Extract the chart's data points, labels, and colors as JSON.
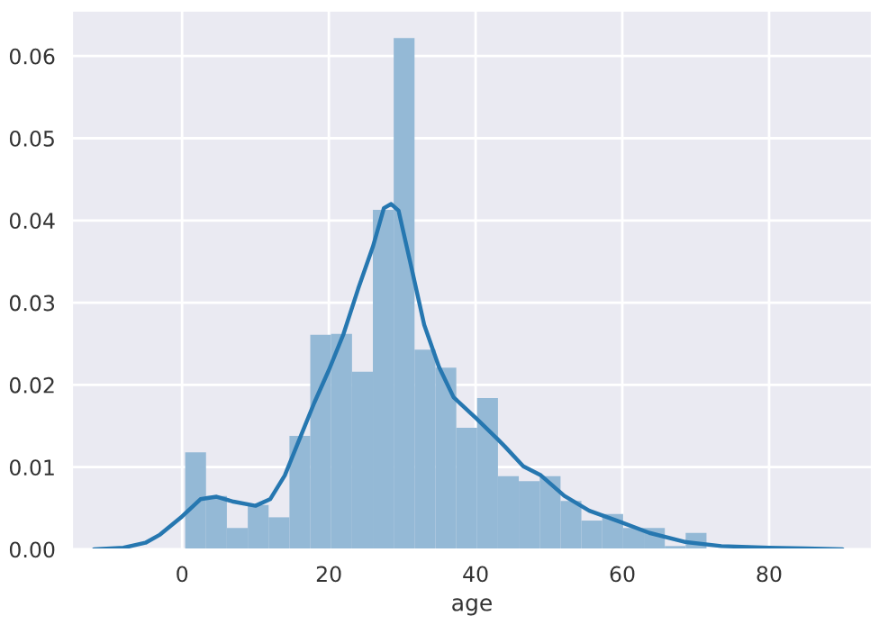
{
  "chart_data": {
    "type": "histogram",
    "xlabel": "age",
    "bins": [
      0.42,
      3.26,
      6.1,
      8.95,
      11.79,
      14.63,
      17.47,
      20.31,
      23.16,
      26.0,
      28.84,
      31.68,
      34.53,
      37.37,
      40.21,
      43.05,
      45.89,
      48.74,
      51.58,
      54.42,
      57.26,
      60.11,
      62.95,
      65.79,
      68.63,
      71.47,
      74.32,
      77.16,
      80.0
    ],
    "values": [
      0.0118,
      0.0065,
      0.0026,
      0.0054,
      0.0039,
      0.0138,
      0.0261,
      0.0262,
      0.0216,
      0.0413,
      0.0622,
      0.0243,
      0.0221,
      0.0148,
      0.0184,
      0.0089,
      0.0083,
      0.0089,
      0.0059,
      0.0035,
      0.0043,
      0.0026,
      0.0026,
      0.0004,
      0.002,
      0,
      0,
      null
    ],
    "color": "#94b9d6",
    "series": [
      {
        "type": "line",
        "color": "#2677b0",
        "x": [
          -12,
          -8,
          -5,
          -3,
          0,
          2.5,
          4.7,
          7,
          10,
          12,
          14,
          16,
          18,
          20,
          22,
          24,
          26,
          27.5,
          28.5,
          29.5,
          31,
          33,
          35,
          37,
          40,
          43,
          44,
          46.5,
          48.9,
          52.1,
          55.5,
          59.5,
          63.7,
          68.6,
          73.5,
          80,
          85,
          90
        ],
        "values": [
          0,
          0.0002,
          0.0008,
          0.0018,
          0.004,
          0.0061,
          0.0064,
          0.0058,
          0.0053,
          0.0061,
          0.009,
          0.0134,
          0.0178,
          0.0218,
          0.0262,
          0.0317,
          0.0368,
          0.0415,
          0.042,
          0.0412,
          0.0353,
          0.0273,
          0.0222,
          0.0185,
          0.016,
          0.0134,
          0.0125,
          0.0101,
          0.009,
          0.0065,
          0.0047,
          0.0034,
          0.002,
          0.0009,
          0.0004,
          0.0002,
          0.0001,
          0
        ]
      }
    ],
    "xlim": [
      -15,
      94
    ],
    "ylim": [
      0,
      0.0655
    ],
    "xticks": [
      0,
      20,
      40,
      60,
      80
    ],
    "yticks": [
      {
        "value": 0,
        "label": "0.00"
      },
      {
        "value": 0.01,
        "label": "0.01"
      },
      {
        "value": 0.02,
        "label": "0.02"
      },
      {
        "value": 0.03,
        "label": "0.03"
      },
      {
        "value": 0.04,
        "label": "0.04"
      },
      {
        "value": 0.05,
        "label": "0.05"
      },
      {
        "value": 0.06,
        "label": "0.06"
      }
    ],
    "grid": true
  }
}
